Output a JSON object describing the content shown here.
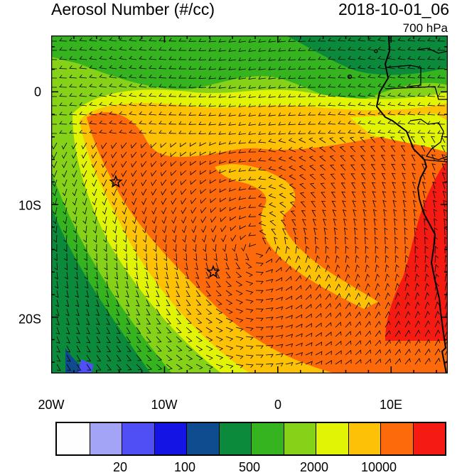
{
  "header": {
    "title": "Aerosol Number (#/cc)",
    "datetime": "2018-10-01_06",
    "level": "700 hPa"
  },
  "map": {
    "lat_labels": [
      "0",
      "10S",
      "20S"
    ],
    "lon_labels": [
      "20W",
      "10W",
      "0",
      "10E"
    ],
    "lon_range": [
      -20,
      15
    ],
    "lat_range": [
      -25,
      5
    ],
    "markers": [
      {
        "name": "star-1",
        "lon": -14.3,
        "lat": -8.0
      },
      {
        "name": "star-2",
        "lon": -5.7,
        "lat": -16.0
      }
    ]
  },
  "colorbar": {
    "colors": [
      "#fefefe",
      "#a4a4f6",
      "#4f4ff5",
      "#1414e4",
      "#0f4c8f",
      "#0b8a3c",
      "#35b41f",
      "#86d218",
      "#e2f406",
      "#fdc106",
      "#fd6a0b",
      "#f51b13"
    ],
    "labels": [
      "20",
      "100",
      "500",
      "2000",
      "10000"
    ]
  }
}
